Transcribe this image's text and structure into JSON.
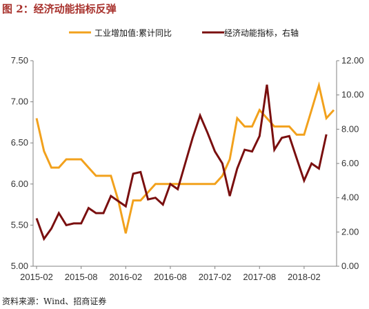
{
  "figure": {
    "title": "图 2：经济动能指标反弹",
    "source": "资料来源：Wind、招商证券"
  },
  "chart_data": {
    "type": "line",
    "x_tick_labels": [
      "2015-02",
      "2015-08",
      "2016-02",
      "2016-08",
      "2017-02",
      "2017-08",
      "2018-02"
    ],
    "y_left": {
      "min": 5.0,
      "max": 7.5,
      "ticks": [
        "5.00",
        "5.50",
        "6.00",
        "6.50",
        "7.00",
        "7.50"
      ]
    },
    "y_right": {
      "min": 0,
      "max": 12,
      "ticks": [
        "0.00",
        "2.00",
        "4.00",
        "6.00",
        "8.00",
        "10.00",
        "12.00"
      ]
    },
    "grid": false,
    "legend_position": "top",
    "series": [
      {
        "name": "工业增加值:累计同比",
        "axis": "left",
        "color": "#f2a11c",
        "values": [
          6.8,
          6.4,
          6.2,
          6.2,
          6.3,
          6.3,
          6.3,
          6.2,
          6.1,
          6.1,
          6.1,
          5.8,
          5.4,
          5.8,
          5.8,
          5.9,
          6.0,
          6.0,
          6.0,
          6.0,
          6.0,
          6.0,
          6.0,
          6.0,
          6.0,
          6.1,
          6.3,
          6.8,
          6.7,
          6.7,
          6.9,
          6.8,
          6.7,
          6.7,
          6.7,
          6.6,
          6.6,
          6.9,
          7.2,
          6.8,
          6.9
        ]
      },
      {
        "name": "经济动能指标，右轴",
        "axis": "right",
        "color": "#7a0f0f",
        "values": [
          2.8,
          1.6,
          2.2,
          3.1,
          2.4,
          2.5,
          2.5,
          3.4,
          3.1,
          3.1,
          4.1,
          3.8,
          3.5,
          5.4,
          5.5,
          3.9,
          4.0,
          3.6,
          4.8,
          4.5,
          6.0,
          7.5,
          8.8,
          7.8,
          6.7,
          6.0,
          4.1,
          5.7,
          6.8,
          6.7,
          7.6,
          10.6,
          6.8,
          7.5,
          7.6,
          6.3,
          5.0,
          6.0,
          5.7,
          7.7
        ]
      }
    ]
  }
}
